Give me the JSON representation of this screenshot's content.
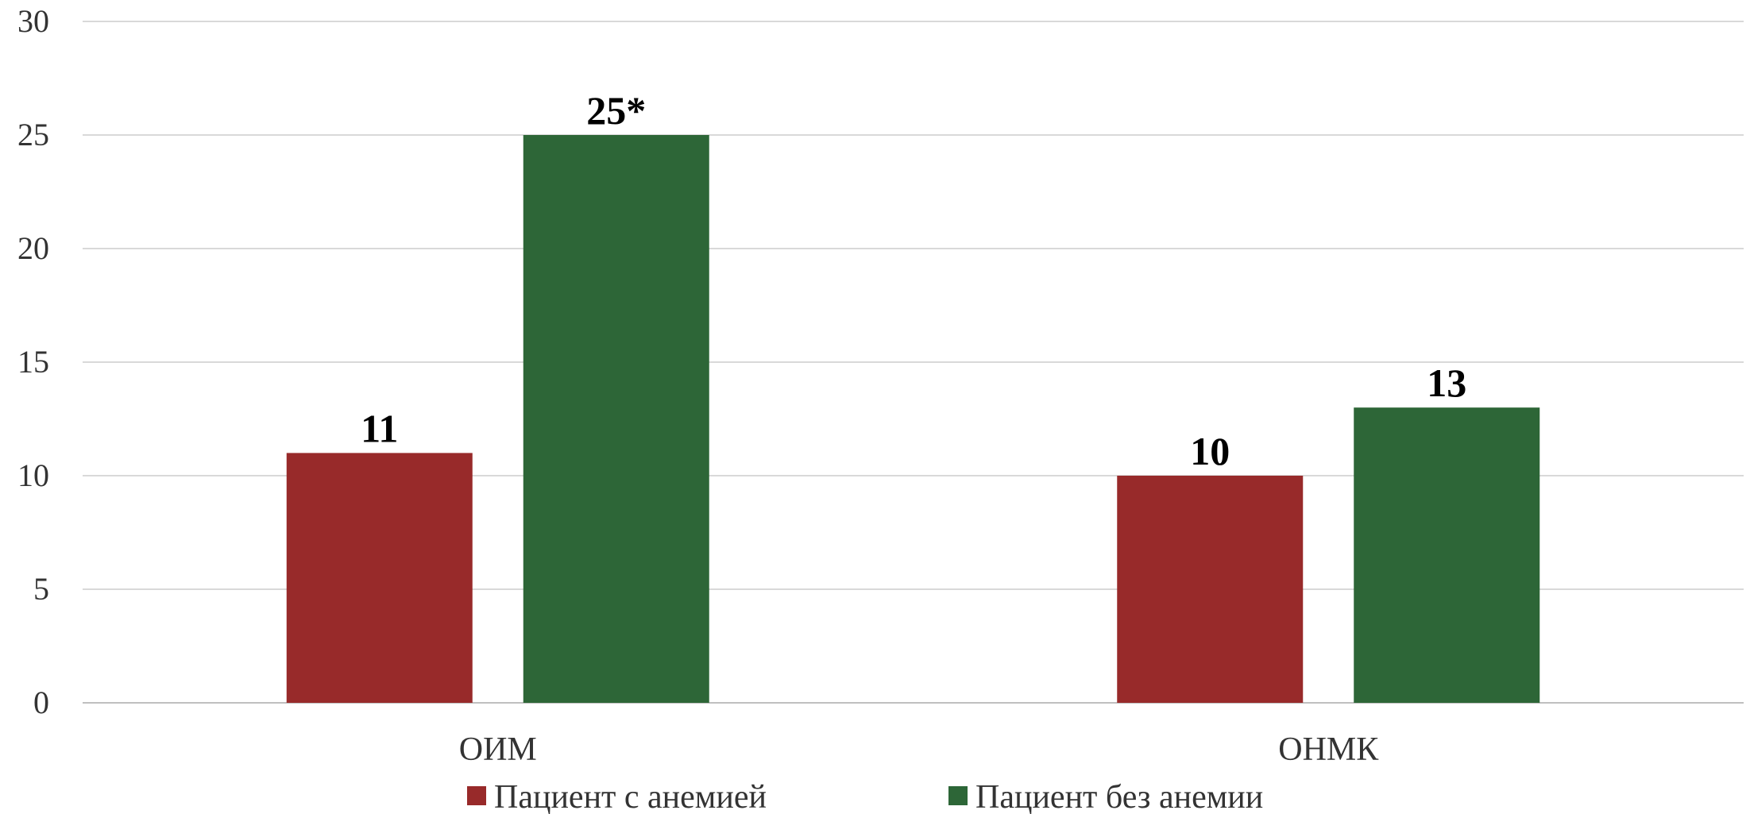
{
  "chart_data": {
    "type": "bar",
    "categories": [
      "ОИМ",
      "ОНМК"
    ],
    "series": [
      {
        "name": "Пациент с анемией",
        "values": [
          11,
          10
        ],
        "labels": [
          "11",
          "10"
        ],
        "color": "#982a2a"
      },
      {
        "name": "Пациент без анемии",
        "values": [
          25,
          13
        ],
        "labels": [
          "25*",
          "13"
        ],
        "color": "#2d6637"
      }
    ],
    "title": "",
    "xlabel": "",
    "ylabel": "",
    "ylim": [
      0,
      30
    ],
    "yticks": [
      0,
      5,
      10,
      15,
      20,
      25,
      30
    ],
    "grid": true,
    "legend_position": "bottom"
  }
}
